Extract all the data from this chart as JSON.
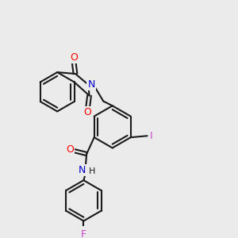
{
  "background_color": "#ebebeb",
  "bond_color": "#1a1a1a",
  "atom_colors": {
    "O": "#ff0000",
    "N": "#0000cc",
    "I": "#cc44cc",
    "F": "#cc44cc",
    "C": "#1a1a1a"
  },
  "figsize": [
    3.0,
    3.0
  ],
  "dpi": 100
}
